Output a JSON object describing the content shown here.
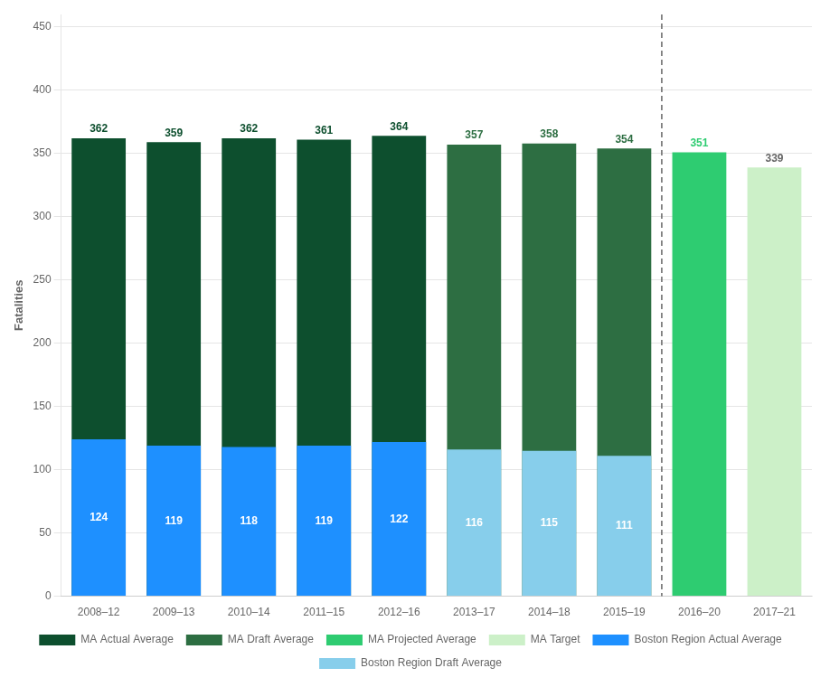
{
  "chart_data": {
    "type": "bar",
    "categories": [
      "2008–12",
      "2009–13",
      "2010–14",
      "2011–15",
      "2012–16",
      "2013–17",
      "2014–18",
      "2015–19",
      "2016–20",
      "2017–21"
    ],
    "series": [
      {
        "name": "MA Actual Average",
        "color": "#0d4f2e",
        "values": [
          362,
          359,
          362,
          361,
          364,
          null,
          null,
          null,
          null,
          null
        ]
      },
      {
        "name": "MA Draft Average",
        "color": "#2d6e42",
        "values": [
          null,
          null,
          null,
          null,
          null,
          357,
          358,
          354,
          null,
          null
        ]
      },
      {
        "name": "MA Projected Average",
        "color": "#2ecc71",
        "values": [
          null,
          null,
          null,
          null,
          null,
          null,
          null,
          null,
          351,
          null
        ]
      },
      {
        "name": "MA Target",
        "color": "#ccf0c8",
        "values": [
          null,
          null,
          null,
          null,
          null,
          null,
          null,
          null,
          null,
          339
        ]
      },
      {
        "name": "Boston Region Actual Average",
        "color": "#1e90ff",
        "values": [
          124,
          119,
          118,
          119,
          122,
          null,
          null,
          null,
          null,
          null
        ]
      },
      {
        "name": "Boston Region Draft Average",
        "color": "#87ceeb",
        "values": [
          null,
          null,
          null,
          null,
          null,
          116,
          115,
          111,
          null,
          null
        ]
      }
    ],
    "ylabel": "Fatalities",
    "ylim": [
      0,
      460
    ],
    "yticks": [
      0,
      50,
      100,
      150,
      200,
      250,
      300,
      350,
      400,
      450
    ],
    "grid": true,
    "legend": "bottom",
    "data_labels": true
  }
}
